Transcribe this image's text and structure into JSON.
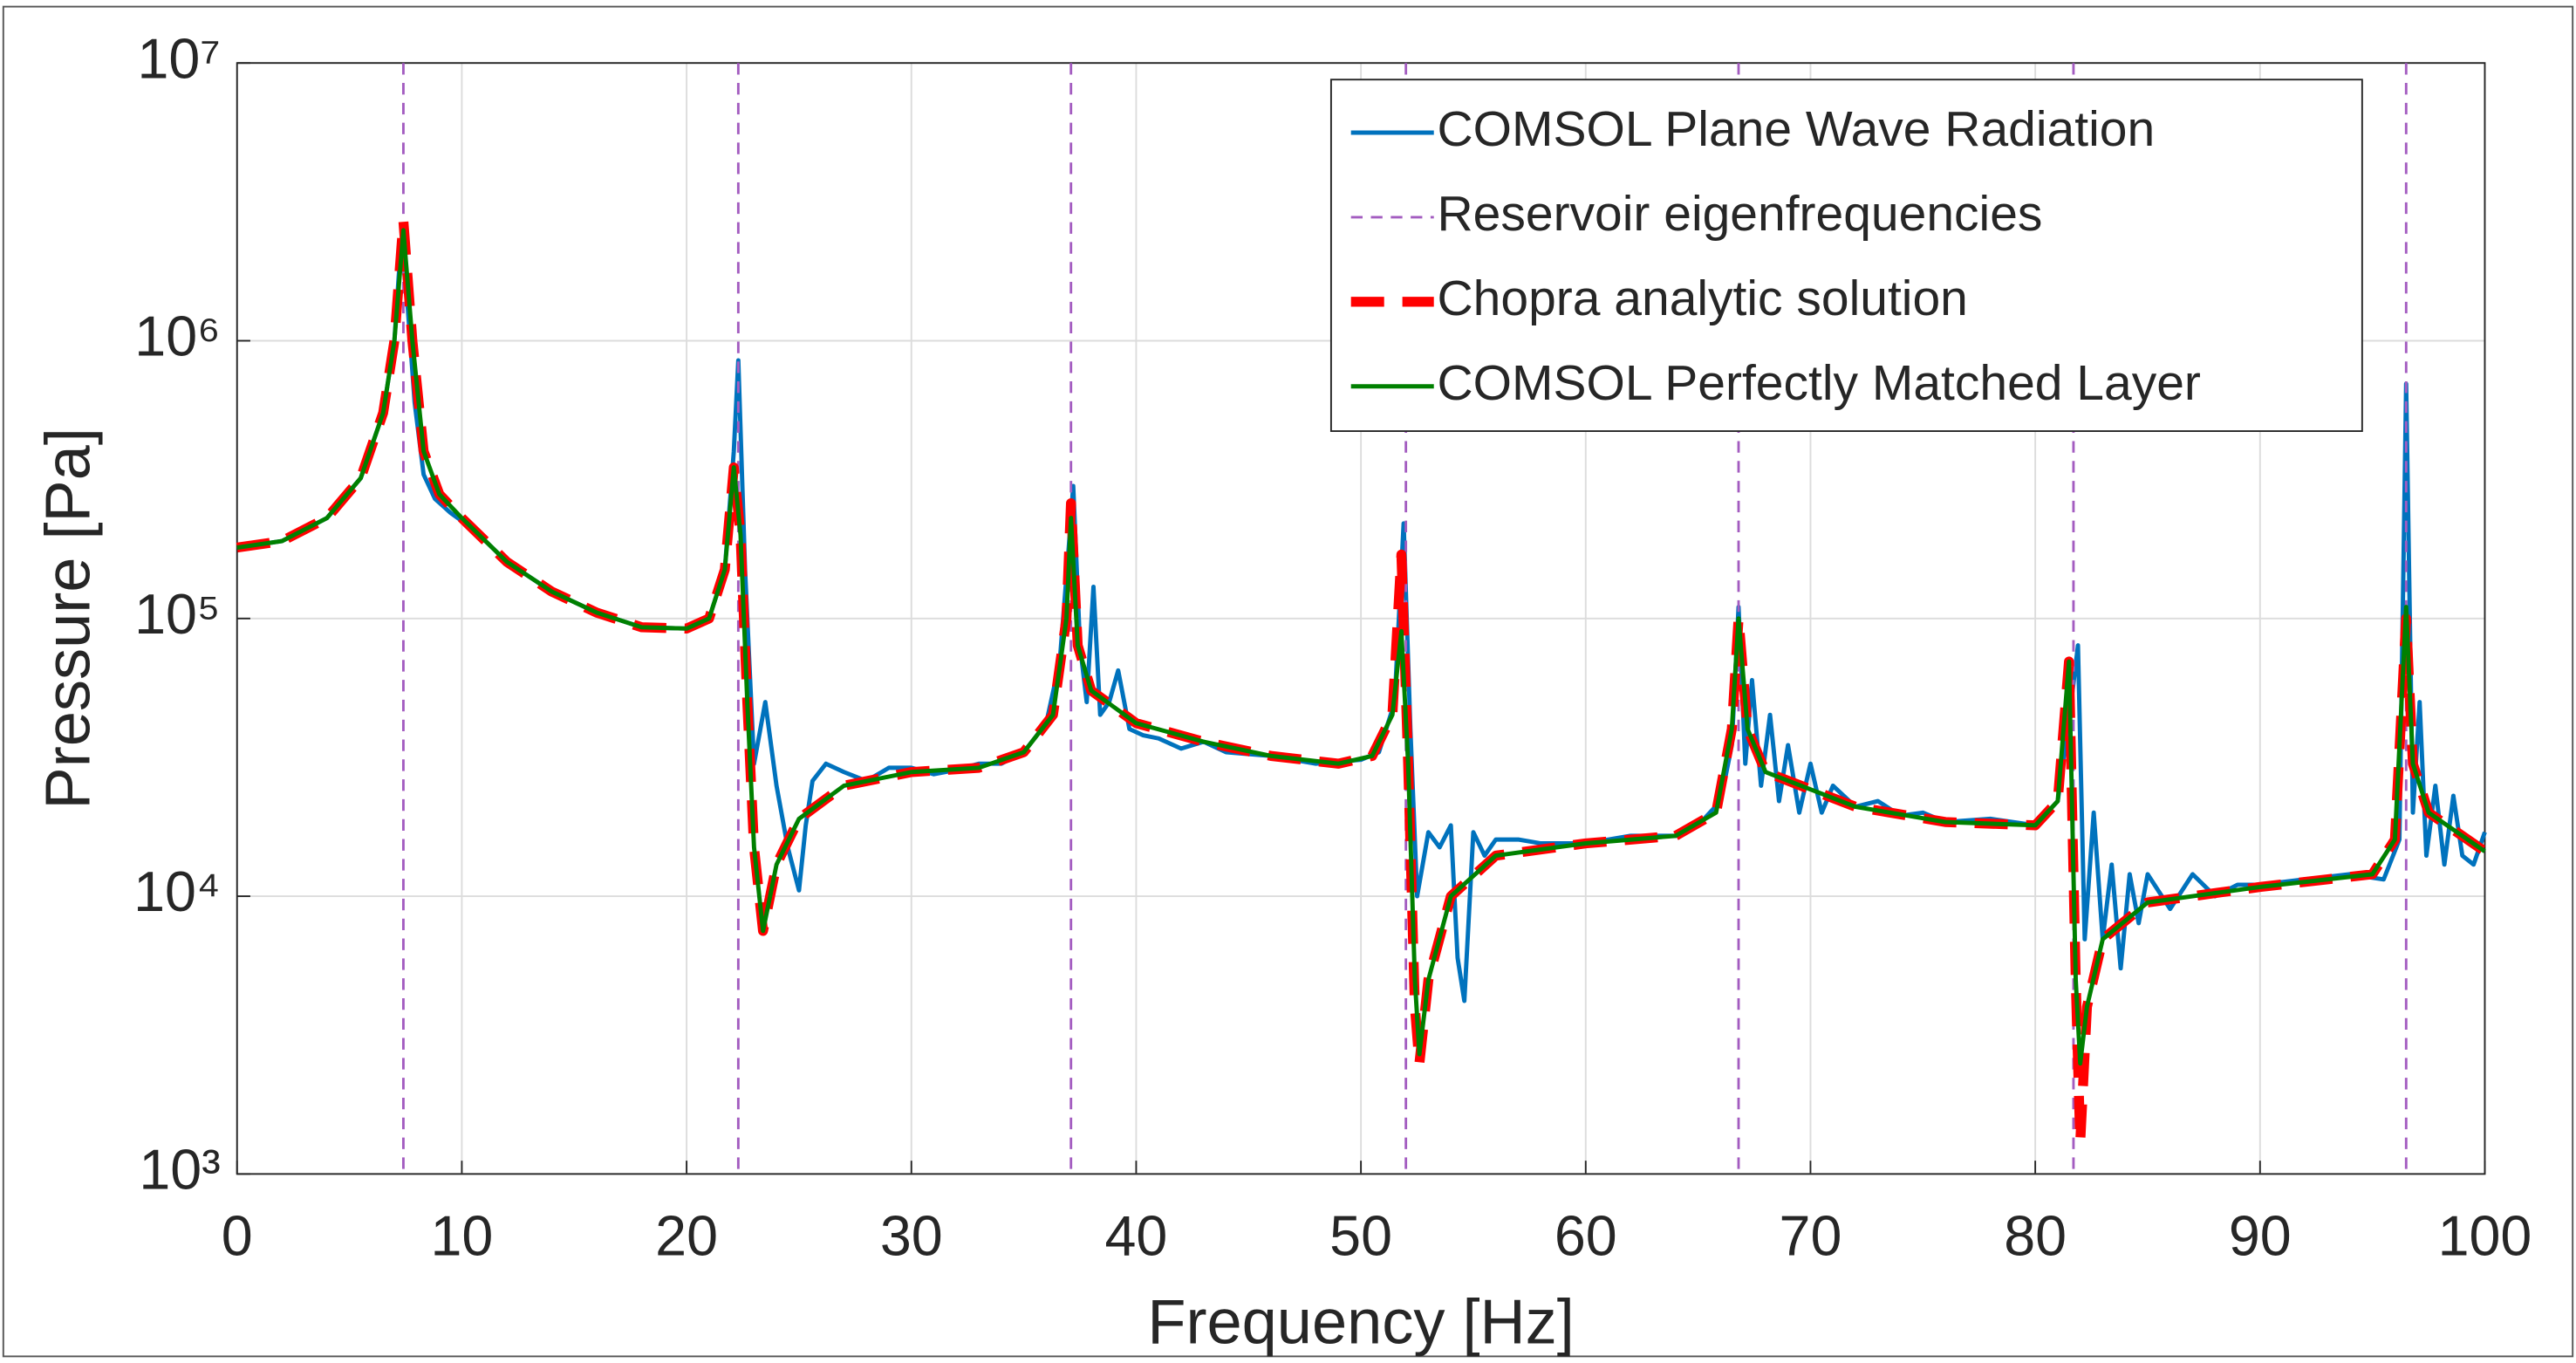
{
  "chart_data": {
    "type": "line",
    "xlabel": "Frequency [Hz]",
    "ylabel": "Pressure [Pa]",
    "xlim": [
      0,
      100
    ],
    "xticks": [
      0,
      10,
      20,
      30,
      40,
      50,
      60,
      70,
      80,
      90,
      100
    ],
    "ylim": [
      1000,
      10000000
    ],
    "yscale": "log",
    "yticks": [
      {
        "value": 1000,
        "label": "10³"
      },
      {
        "value": 10000,
        "label": "10⁴"
      },
      {
        "value": 100000,
        "label": "10⁵"
      },
      {
        "value": 1000000,
        "label": "10⁶"
      },
      {
        "value": 10000000,
        "label": "10⁷"
      }
    ],
    "grid": true,
    "legend": "upper right",
    "series": [
      {
        "name": "COMSOL Plane Wave Radiation",
        "color": "#0072bd",
        "style": "solid",
        "x": [
          0,
          2,
          4,
          5.5,
          6.5,
          7.0,
          7.3,
          7.6,
          7.9,
          8.3,
          8.8,
          9.5,
          10.5,
          12,
          14,
          16,
          18,
          20,
          21,
          21.7,
          22.1,
          22.3,
          22.6,
          23.0,
          23.5,
          24,
          24.5,
          25,
          25.3,
          25.6,
          26.2,
          27,
          28,
          29,
          30,
          31,
          32,
          33,
          34,
          35,
          36,
          36.6,
          37.0,
          37.2,
          37.5,
          37.8,
          38.1,
          38.4,
          38.8,
          39.2,
          39.7,
          40.3,
          41,
          42,
          43,
          44,
          46,
          48,
          50,
          50.8,
          51.5,
          51.9,
          52.2,
          52.5,
          53,
          53.5,
          54,
          54.3,
          54.6,
          55,
          55.5,
          56,
          57,
          58,
          60,
          62,
          64,
          65,
          66,
          66.5,
          66.8,
          67.1,
          67.4,
          67.8,
          68.2,
          68.6,
          69,
          69.5,
          70,
          70.5,
          71,
          72,
          73,
          74,
          75,
          76,
          78,
          80,
          81,
          81.6,
          81.9,
          82.2,
          82.6,
          83,
          83.4,
          83.8,
          84.2,
          84.6,
          85,
          86,
          87,
          88,
          89,
          90,
          92,
          94,
          95.5,
          96.2,
          96.5,
          96.8,
          97.1,
          97.4,
          97.8,
          98.2,
          98.6,
          99,
          99.5,
          100
        ],
        "values": [
          180000,
          190000,
          230000,
          320000,
          550000,
          1000000,
          2300000,
          1300000,
          600000,
          330000,
          270000,
          240000,
          210000,
          160000,
          125000,
          105000,
          93000,
          92000,
          100000,
          150000,
          400000,
          850000,
          150000,
          30000,
          50000,
          25000,
          15000,
          10500,
          18000,
          26000,
          30000,
          28000,
          26000,
          29000,
          29000,
          27500,
          28500,
          30000,
          30000,
          33000,
          42000,
          70000,
          180000,
          300000,
          80000,
          50000,
          130000,
          45000,
          50000,
          65000,
          40000,
          38000,
          37000,
          34000,
          36000,
          33000,
          32000,
          30000,
          31000,
          33000,
          50000,
          220000,
          40000,
          10000,
          17000,
          15000,
          18000,
          6000,
          4200,
          17000,
          14000,
          16000,
          16000,
          15500,
          15500,
          16500,
          16500,
          18000,
          22000,
          35000,
          110000,
          30000,
          60000,
          25000,
          45000,
          22000,
          35000,
          20000,
          30000,
          20000,
          25000,
          21000,
          22000,
          19500,
          20000,
          18500,
          19000,
          18000,
          22000,
          50000,
          80000,
          7000,
          20000,
          7000,
          13000,
          5500,
          12000,
          8000,
          12000,
          9000,
          12000,
          10000,
          11000,
          11000,
          11500,
          12000,
          11500,
          16000,
          700000,
          20000,
          50000,
          14000,
          25000,
          13000,
          23000,
          14000,
          13000,
          17000
        ]
      },
      {
        "name": "Reservoir eigenfrequencies",
        "color": "#a35cc0",
        "style": "vline",
        "x": [
          7.4,
          22.3,
          37.1,
          52.0,
          66.8,
          81.7,
          96.5
        ]
      },
      {
        "name": "Chopra analytic solution",
        "color": "#ff0000",
        "style": "dashed",
        "x": [
          0,
          2,
          4,
          5.5,
          6.5,
          7.0,
          7.4,
          7.8,
          8.3,
          9,
          10,
          12,
          14,
          16,
          18,
          20,
          21,
          21.7,
          22.1,
          22.4,
          22.7,
          23,
          23.4,
          24,
          25,
          27,
          30,
          33,
          35,
          36.3,
          36.9,
          37.1,
          37.4,
          38,
          40,
          43,
          46,
          49,
          50.5,
          51.4,
          51.8,
          52.1,
          52.4,
          52.6,
          53,
          54,
          56,
          60,
          64,
          65.8,
          66.5,
          66.8,
          67.2,
          68,
          72,
          76,
          80,
          81,
          81.5,
          81.8,
          82,
          82.3,
          83,
          85,
          90,
          95,
          96,
          96.5,
          96.8,
          97.5,
          100
        ],
        "values": [
          180000,
          190000,
          230000,
          320000,
          550000,
          1000000,
          2700000,
          1000000,
          400000,
          280000,
          230000,
          160000,
          125000,
          105000,
          93000,
          92000,
          100000,
          150000,
          350000,
          200000,
          50000,
          15000,
          7500,
          13000,
          19000,
          25000,
          28000,
          29000,
          33000,
          45000,
          100000,
          260000,
          80000,
          55000,
          42000,
          36000,
          32000,
          30000,
          32000,
          45000,
          170000,
          30000,
          4000,
          2500,
          5000,
          10000,
          14000,
          15500,
          16500,
          20000,
          40000,
          100000,
          40000,
          28000,
          21000,
          18500,
          18000,
          22000,
          70000,
          5000,
          1300,
          4000,
          7000,
          9500,
          10800,
          12000,
          16000,
          100000,
          30000,
          20000,
          14500
        ]
      },
      {
        "name": "COMSOL Perfectly Matched Layer",
        "color": "#008000",
        "style": "solid",
        "x": [
          0,
          2,
          4,
          5.5,
          6.5,
          7.0,
          7.4,
          7.8,
          8.3,
          9,
          10,
          12,
          14,
          16,
          18,
          20,
          21,
          21.7,
          22.1,
          22.4,
          22.7,
          23,
          23.4,
          24,
          25,
          27,
          30,
          33,
          35,
          36.3,
          36.9,
          37.1,
          37.4,
          38,
          40,
          43,
          46,
          49,
          50.5,
          51.4,
          51.8,
          52.1,
          52.4,
          52.6,
          53,
          54,
          56,
          60,
          64,
          65.8,
          66.5,
          66.8,
          67.2,
          68,
          72,
          76,
          80,
          81,
          81.5,
          81.8,
          82,
          82.3,
          83,
          85,
          90,
          95,
          96,
          96.5,
          96.8,
          97.5,
          100
        ],
        "values": [
          180000,
          190000,
          230000,
          320000,
          550000,
          1000000,
          2500000,
          1000000,
          400000,
          280000,
          230000,
          160000,
          125000,
          105000,
          93000,
          92000,
          100000,
          150000,
          350000,
          200000,
          50000,
          15000,
          7500,
          13000,
          19000,
          25000,
          28000,
          29000,
          33000,
          45000,
          100000,
          230000,
          80000,
          55000,
          42000,
          36000,
          32000,
          30000,
          32000,
          45000,
          90000,
          30000,
          5000,
          2700,
          5000,
          10000,
          14000,
          15500,
          16500,
          20000,
          40000,
          100000,
          40000,
          28000,
          21000,
          18500,
          18000,
          22000,
          70000,
          5000,
          2500,
          4000,
          7000,
          9500,
          10800,
          12000,
          16000,
          110000,
          30000,
          20000,
          14500
        ]
      }
    ]
  }
}
